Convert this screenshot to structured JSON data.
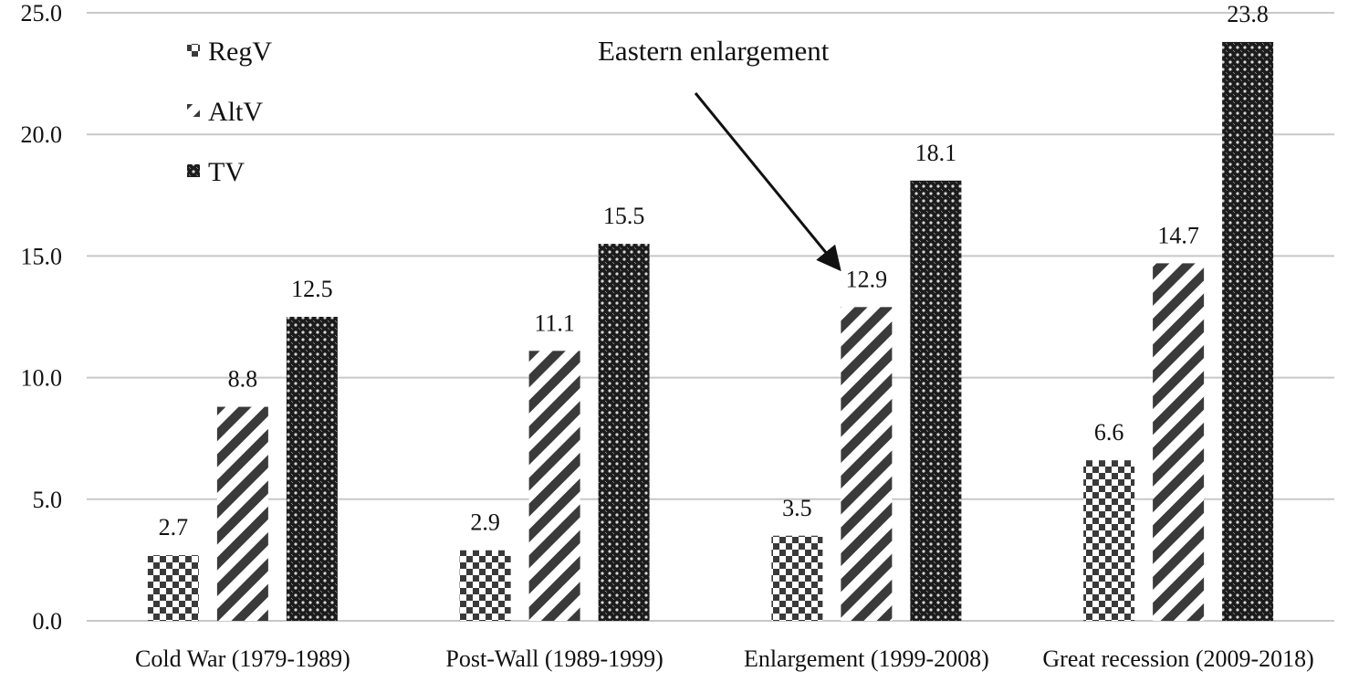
{
  "chart_data": {
    "type": "bar",
    "title": "",
    "xlabel": "",
    "ylabel": "",
    "categories": [
      "Cold War  (1979-1989)",
      "Post-Wall  (1989-1999)",
      "Enlargement (1999-2008)",
      "Great recession (2009-2018)"
    ],
    "series": [
      {
        "name": "RegV",
        "values": [
          2.7,
          2.9,
          3.5,
          6.6
        ],
        "pattern": "checker"
      },
      {
        "name": "AltV",
        "values": [
          8.8,
          11.1,
          12.9,
          14.7
        ],
        "pattern": "diagonal-stripes"
      },
      {
        "name": "TV",
        "values": [
          12.5,
          15.5,
          18.1,
          23.8
        ],
        "pattern": "dense-crosshatch"
      }
    ],
    "ylim": [
      0,
      25
    ],
    "yticks": [
      "0.0",
      "5.0",
      "10.0",
      "15.0",
      "20.0",
      "25.0"
    ],
    "data_labels": [
      [
        "2.7",
        "2.9",
        "3.5",
        "6.6"
      ],
      [
        "8.8",
        "11.1",
        "12.9",
        "14.7"
      ],
      [
        "12.5",
        "15.5",
        "18.1",
        "23.8"
      ]
    ],
    "grid": true,
    "legend_position": "top-left",
    "annotation": {
      "text": "Eastern enlargement",
      "target_category": "Enlargement (1999-2008)",
      "target_series": "AltV"
    },
    "colors": {
      "bar": "#3a3a3a",
      "grid": "#c8c8c8",
      "text": "#111111"
    }
  }
}
